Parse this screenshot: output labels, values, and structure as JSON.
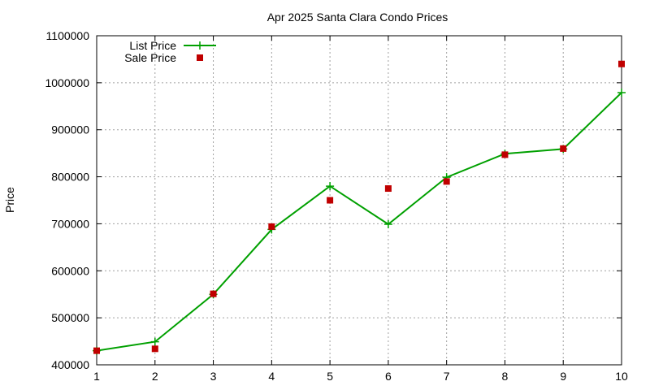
{
  "chart_data": {
    "type": "line",
    "title": "Apr 2025 Santa Clara Condo Prices",
    "xlabel": "",
    "ylabel": "Price",
    "x": [
      1,
      2,
      3,
      4,
      5,
      6,
      7,
      8,
      9,
      10
    ],
    "xlim": [
      1,
      10
    ],
    "ylim": [
      400000,
      1100000
    ],
    "yticks": [
      "400000",
      "500000",
      "600000",
      "700000",
      "800000",
      "900000",
      "1000000",
      "1100000"
    ],
    "xticks": [
      "1",
      "2",
      "3",
      "4",
      "5",
      "6",
      "7",
      "8",
      "9",
      "10"
    ],
    "grid": true,
    "legend_placement": "top-left",
    "series": [
      {
        "name": "List Price",
        "style": "line-points",
        "marker": "plus",
        "color": "#00a000",
        "values": [
          430000,
          449000,
          550000,
          688000,
          780000,
          699000,
          799000,
          849000,
          859000,
          979000
        ]
      },
      {
        "name": "Sale Price",
        "style": "points",
        "marker": "square",
        "color": "#c00000",
        "values": [
          430000,
          434000,
          551000,
          694000,
          750000,
          775000,
          790000,
          847000,
          860000,
          1040000
        ]
      }
    ]
  }
}
